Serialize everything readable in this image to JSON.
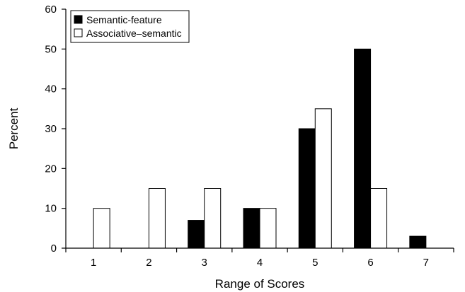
{
  "chart_data": {
    "type": "bar",
    "title": "",
    "xlabel": "Range of Scores",
    "ylabel": "Percent",
    "categories": [
      "1",
      "2",
      "3",
      "4",
      "5",
      "6",
      "7"
    ],
    "ylim": [
      0,
      60
    ],
    "yticks": [
      "0",
      "10",
      "20",
      "30",
      "40",
      "50",
      "60"
    ],
    "grid": false,
    "legend_position": "top-left",
    "series": [
      {
        "name": "Semantic-feature",
        "values": [
          0,
          0,
          7,
          10,
          30,
          50,
          3
        ],
        "color": "#000000"
      },
      {
        "name": "Associative–semantic",
        "values": [
          10,
          15,
          15,
          10,
          35,
          15,
          0
        ],
        "color": "#ffffff"
      }
    ]
  }
}
